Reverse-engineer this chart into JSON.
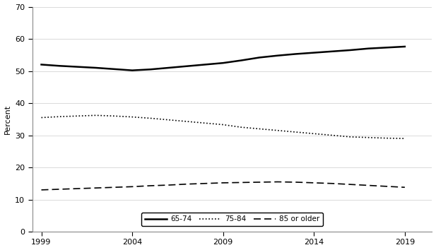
{
  "years": [
    1999,
    2000,
    2001,
    2002,
    2003,
    2004,
    2005,
    2006,
    2007,
    2008,
    2009,
    2010,
    2011,
    2012,
    2013,
    2014,
    2015,
    2016,
    2017,
    2018,
    2019
  ],
  "line_65_74": [
    52.0,
    51.6,
    51.3,
    51.0,
    50.6,
    50.2,
    50.5,
    51.0,
    51.5,
    52.0,
    52.5,
    53.3,
    54.2,
    54.8,
    55.3,
    55.7,
    56.1,
    56.5,
    57.0,
    57.3,
    57.6
  ],
  "line_75_84": [
    35.5,
    35.8,
    36.0,
    36.2,
    36.0,
    35.7,
    35.3,
    34.8,
    34.3,
    33.8,
    33.3,
    32.5,
    32.0,
    31.5,
    31.0,
    30.5,
    30.0,
    29.5,
    29.3,
    29.1,
    29.0
  ],
  "line_85_older": [
    13.0,
    13.2,
    13.4,
    13.6,
    13.8,
    14.0,
    14.3,
    14.5,
    14.8,
    15.0,
    15.2,
    15.3,
    15.4,
    15.5,
    15.4,
    15.2,
    15.0,
    14.7,
    14.4,
    14.1,
    13.8
  ],
  "ylabel": "Percent",
  "ylim": [
    0,
    70
  ],
  "yticks": [
    0,
    10,
    20,
    30,
    40,
    50,
    60,
    70
  ],
  "xticks": [
    1999,
    2004,
    2009,
    2014,
    2019
  ],
  "xlim": [
    1998.5,
    2020.5
  ],
  "legend_labels": [
    "65-74",
    "75-84",
    "85 or older"
  ],
  "line_color": "#000000",
  "background_color": "#ffffff",
  "grid_color": "#cccccc"
}
